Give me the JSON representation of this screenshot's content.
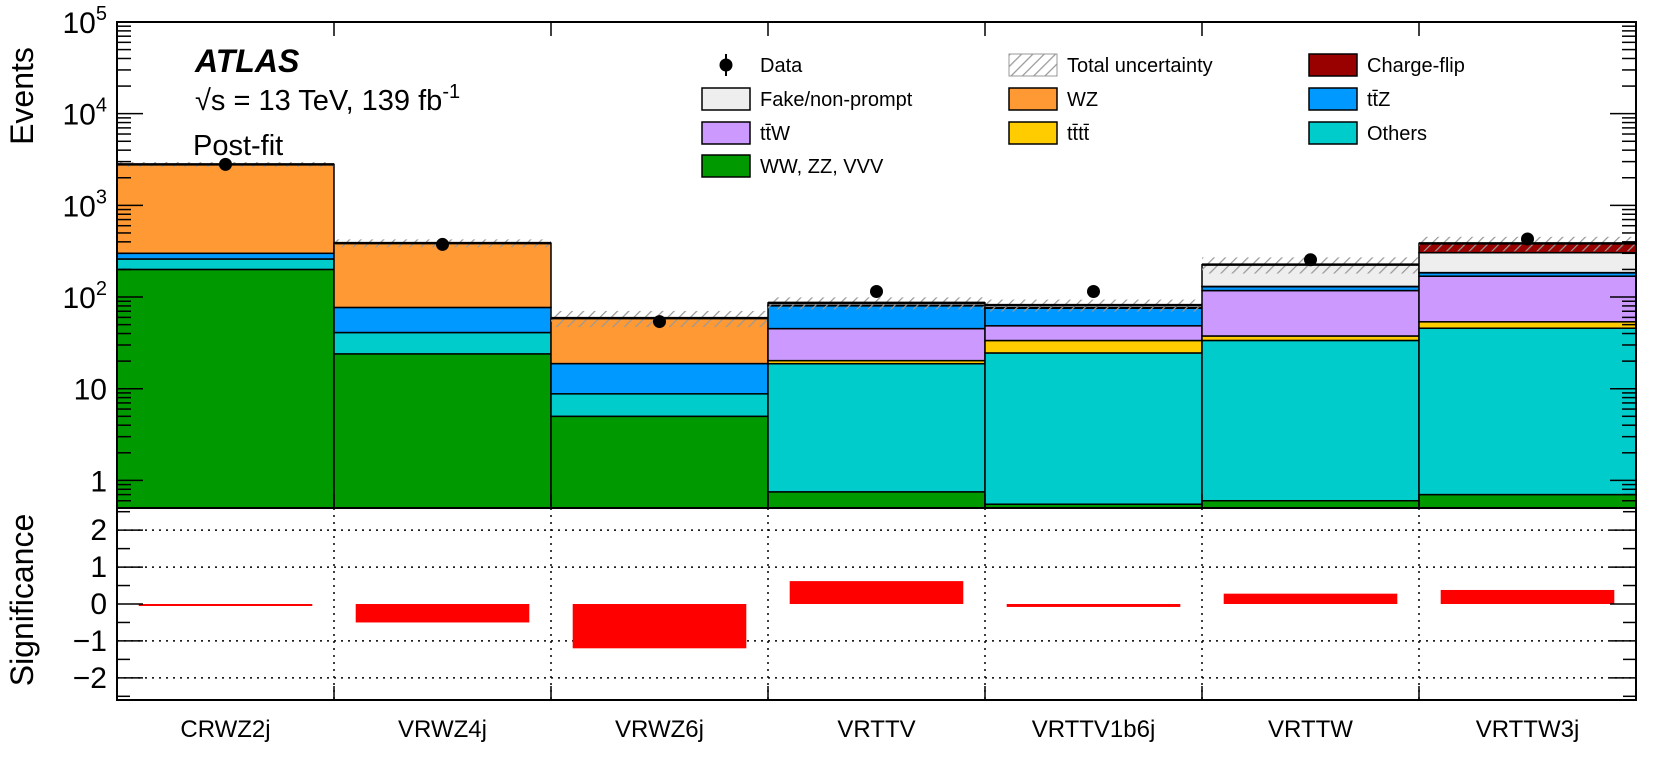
{
  "chart_data": {
    "type": "stacked-bar-log",
    "categories": [
      "CRWZ2j",
      "VRWZ4j",
      "VRWZ6j",
      "VRTTV",
      "VRTTV1b6j",
      "VRTTW",
      "VRTTW3j"
    ],
    "atlas_label": "ATLAS",
    "energy_label": "√s = 13 TeV, 139 fb",
    "energy_superscript": "-1",
    "fit_label": "Post-fit",
    "top_panel": {
      "ylabel": "Events",
      "scale": "log",
      "ylim": [
        0.5,
        100000
      ],
      "ytick_labels": [
        {
          "value": 1,
          "label": "1"
        },
        {
          "value": 10,
          "label": "10"
        },
        {
          "value": 100,
          "label": "10",
          "exp": "2"
        },
        {
          "value": 1000,
          "label": "10",
          "exp": "3"
        },
        {
          "value": 10000,
          "label": "10",
          "exp": "4"
        },
        {
          "value": 100000,
          "label": "10",
          "exp": "5"
        }
      ],
      "series": [
        {
          "name": "WW, ZZ, VVV",
          "color": "#009900",
          "values": [
            200,
            24,
            5,
            0.75,
            0.55,
            0.6,
            0.7
          ]
        },
        {
          "name": "Others",
          "color": "#00cccc",
          "values": [
            60,
            17,
            3.8,
            18,
            24,
            33,
            45
          ]
        },
        {
          "name": "tt̄tt̄",
          "color": "#ffcc00",
          "values": [
            0,
            0,
            0,
            1.5,
            9,
            4,
            8
          ]
        },
        {
          "name": "tt̄W",
          "color": "#cc99ff",
          "values": [
            0,
            0,
            0,
            25,
            15,
            80,
            115
          ]
        },
        {
          "name": "tt̄Z",
          "color": "#0099ff",
          "values": [
            40,
            36,
            10,
            35,
            27,
            12,
            15
          ]
        },
        {
          "name": "WZ",
          "color": "#ff9933",
          "values": [
            2500,
            310,
            40,
            1,
            1,
            1,
            1
          ]
        },
        {
          "name": "Fake/non-prompt",
          "color": "#eeeeee",
          "values": [
            0,
            0,
            0,
            5,
            5,
            95,
            120
          ]
        },
        {
          "name": "Charge-flip",
          "color": "#990000",
          "values": [
            0,
            0,
            0,
            0,
            0,
            0,
            80
          ]
        }
      ],
      "uncertainty_rel": [
        0.06,
        0.1,
        0.2,
        0.15,
        0.15,
        0.2,
        0.18
      ],
      "data": [
        2800,
        375,
        54,
        115,
        115,
        255,
        430
      ]
    },
    "bottom_panel": {
      "ylabel": "Significance",
      "ylim": [
        -2.6,
        2.6
      ],
      "ytick_labels": [
        {
          "value": 2,
          "label": "2"
        },
        {
          "value": 1,
          "label": "1"
        },
        {
          "value": 0,
          "label": "0"
        },
        {
          "value": -1,
          "label": "−1"
        },
        {
          "value": -2,
          "label": "−2"
        }
      ],
      "gridlines": [
        -2,
        -1,
        1,
        2
      ],
      "values": [
        0.0,
        -0.5,
        -1.2,
        0.62,
        -0.08,
        0.28,
        0.38
      ],
      "color": "#ff0000"
    },
    "legend": {
      "placement": "top-right",
      "entries": [
        {
          "label": "Data",
          "kind": "marker"
        },
        {
          "label": "Total uncertainty",
          "kind": "hatch"
        },
        {
          "label": "Charge-flip",
          "kind": "box",
          "color": "#990000"
        },
        {
          "label": "Fake/non-prompt",
          "kind": "box",
          "color": "#eeeeee"
        },
        {
          "label": "WZ",
          "kind": "box",
          "color": "#ff9933"
        },
        {
          "label": "tt̄Z",
          "kind": "box",
          "color": "#0099ff"
        },
        {
          "label": "tt̄W",
          "kind": "box",
          "color": "#cc99ff"
        },
        {
          "label": "tt̄tt̄",
          "kind": "box",
          "color": "#ffcc00"
        },
        {
          "label": "Others",
          "kind": "box",
          "color": "#00cccc"
        },
        {
          "label": "WW, ZZ, VVV",
          "kind": "box",
          "color": "#009900"
        }
      ]
    }
  }
}
